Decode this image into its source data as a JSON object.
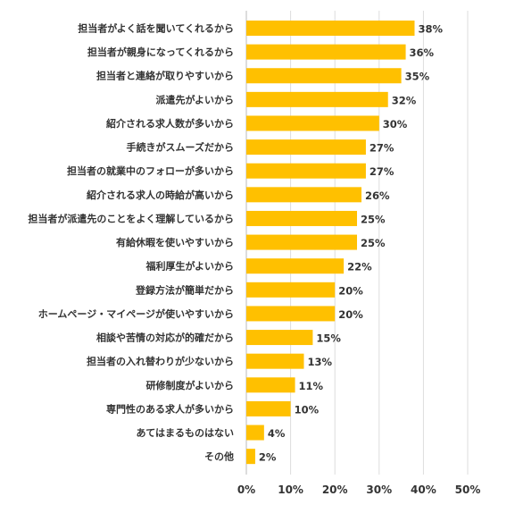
{
  "chart_data": {
    "type": "bar",
    "orientation": "horizontal",
    "categories": [
      "担当者がよく話を聞いてくれるから",
      "担当者が親身になってくれるから",
      "担当者と連絡が取りやすいから",
      "派遣先がよいから",
      "紹介される求人数が多いから",
      "手続きがスムーズだから",
      "担当者の就業中のフォローが多いから",
      "紹介される求人の時給が高いから",
      "担当者が派遣先のことをよく理解しているから",
      "有給休暇を使いやすいから",
      "福利厚生がよいから",
      "登録方法が簡単だから",
      "ホームページ・マイページが使いやすいから",
      "相談や苦情の対応が的確だから",
      "担当者の入れ替わりが少ないから",
      "研修制度がよいから",
      "専門性のある求人が多いから",
      "あてはまるものはない",
      "その他"
    ],
    "values": [
      38,
      36,
      35,
      32,
      30,
      27,
      27,
      26,
      25,
      25,
      22,
      20,
      20,
      15,
      13,
      11,
      10,
      4,
      2
    ],
    "value_labels": [
      "38%",
      "36%",
      "35%",
      "32%",
      "30%",
      "27%",
      "27%",
      "26%",
      "25%",
      "25%",
      "22%",
      "20%",
      "20%",
      "15%",
      "13%",
      "11%",
      "10%",
      "4%",
      "2%"
    ],
    "xticks": [
      "0%",
      "10%",
      "20%",
      "30%",
      "40%",
      "50%"
    ],
    "xlim": [
      0,
      50
    ],
    "grid": true,
    "bar_color": "#ffc000",
    "title": "",
    "xlabel": "",
    "ylabel": ""
  }
}
